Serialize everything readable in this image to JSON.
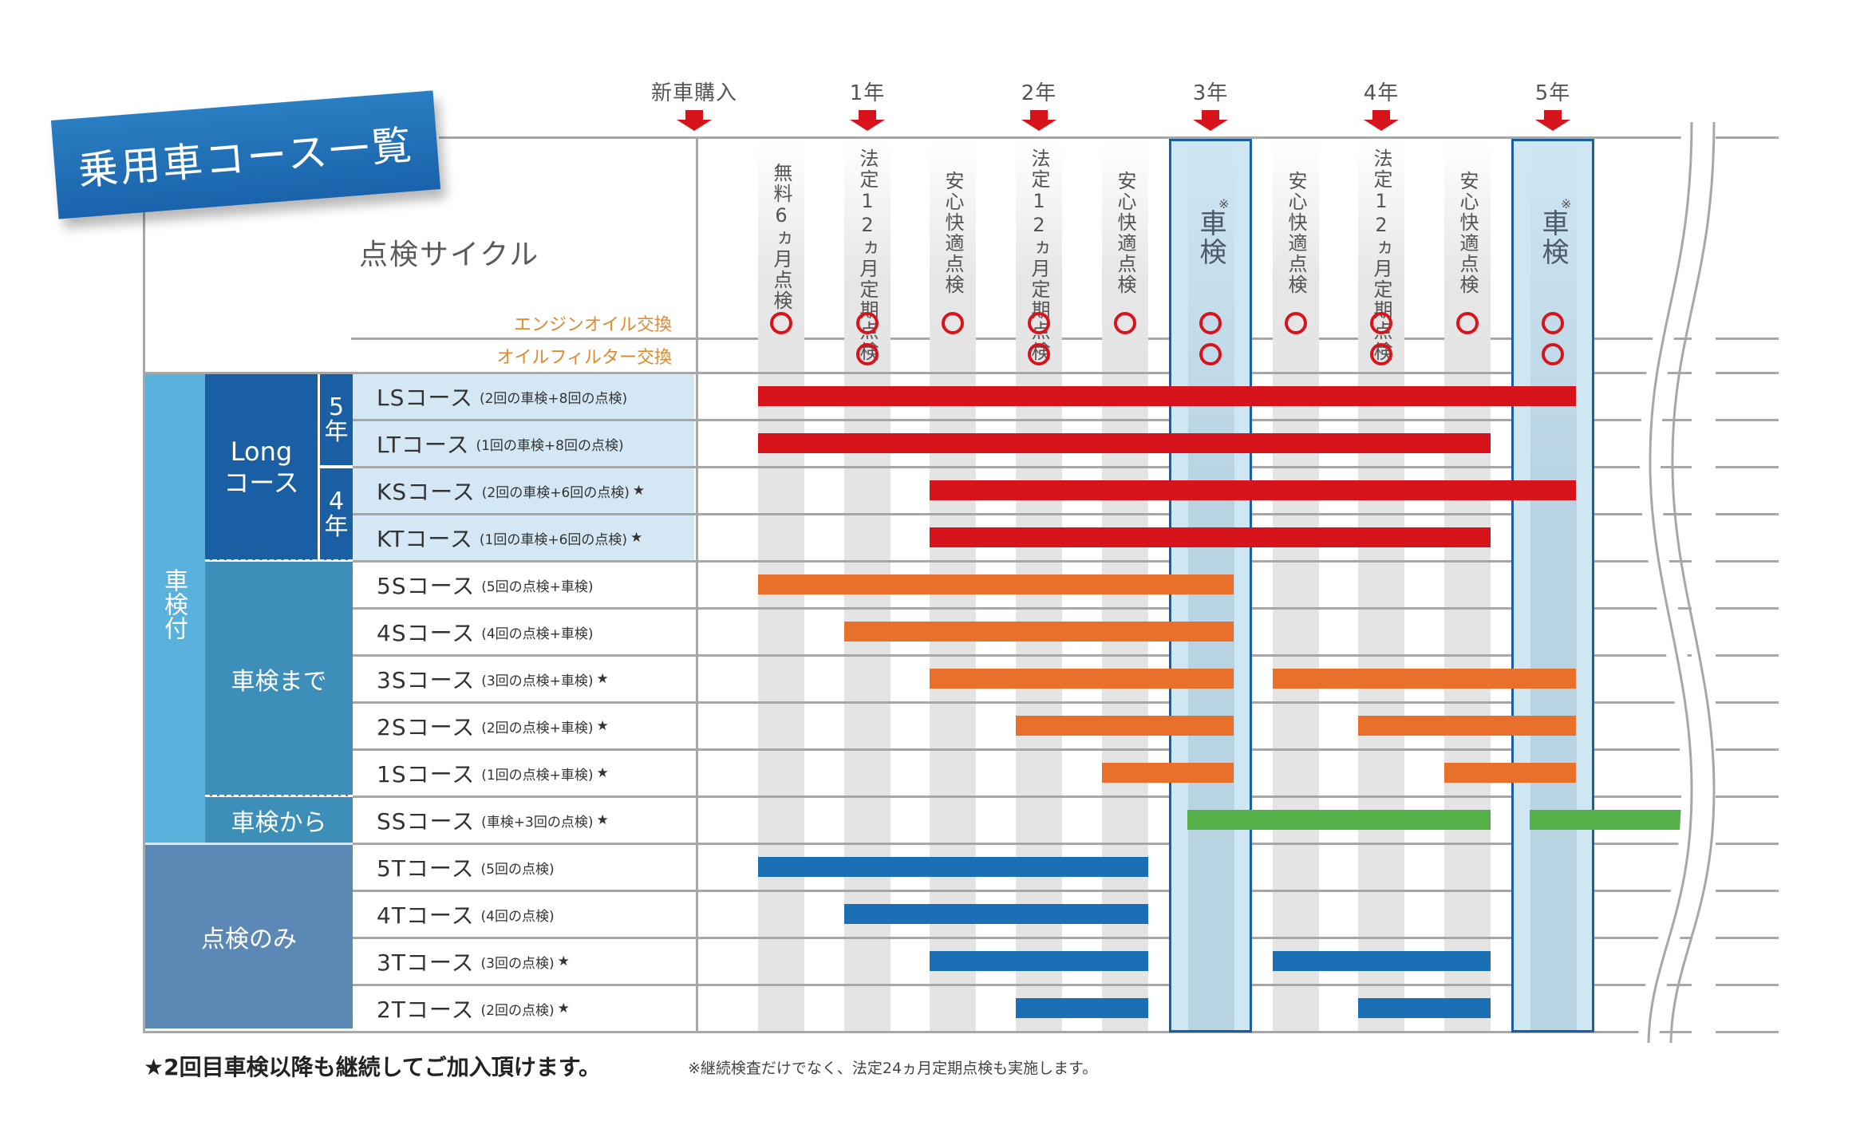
{
  "title": "乗用車コース一覧",
  "header": {
    "cycle_label": "点検サイクル",
    "oil_rows": [
      "エンジンオイル交換",
      "オイルフィルター交換"
    ],
    "years": [
      {
        "label": "新車購入"
      },
      {
        "label": "1年"
      },
      {
        "label": "2年"
      },
      {
        "label": "3年"
      },
      {
        "label": "4年"
      },
      {
        "label": "5年"
      }
    ],
    "columns": [
      {
        "label": "無料6ヵ月点検",
        "engine_oil": true,
        "oil_filter": false
      },
      {
        "label": "法定12ヵ月定期点検",
        "engine_oil": true,
        "oil_filter": true
      },
      {
        "label": "安心快適点検",
        "engine_oil": true,
        "oil_filter": false
      },
      {
        "label": "法定12ヵ月定期点検",
        "engine_oil": true,
        "oil_filter": true
      },
      {
        "label": "安心快適点検",
        "engine_oil": true,
        "oil_filter": false
      },
      {
        "label": "車検",
        "note_mark": "※",
        "engine_oil": true,
        "oil_filter": true
      },
      {
        "label": "安心快適点検",
        "engine_oil": true,
        "oil_filter": false
      },
      {
        "label": "法定12ヵ月定期点検",
        "engine_oil": true,
        "oil_filter": true
      },
      {
        "label": "安心快適点検",
        "engine_oil": true,
        "oil_filter": false
      },
      {
        "label": "車検",
        "note_mark": "※",
        "engine_oil": true,
        "oil_filter": true
      }
    ]
  },
  "groups": {
    "with_inspection": "車検付",
    "long": "Long\nコース",
    "long_5y": "5\n年",
    "long_4y": "4\n年",
    "until_inspection": "車検まで",
    "from_inspection": "車検から",
    "check_only": "点検のみ"
  },
  "courses": [
    {
      "code": "LSコース",
      "desc": "(2回の車検+8回の点検)",
      "star": false
    },
    {
      "code": "LTコース",
      "desc": "(1回の車検+8回の点検)",
      "star": false
    },
    {
      "code": "KSコース",
      "desc": "(2回の車検+6回の点検)",
      "star": true
    },
    {
      "code": "KTコース",
      "desc": "(1回の車検+6回の点検)",
      "star": true
    },
    {
      "code": "5Sコース",
      "desc": "(5回の点検+車検)",
      "star": false
    },
    {
      "code": "4Sコース",
      "desc": "(4回の点検+車検)",
      "star": false
    },
    {
      "code": "3Sコース",
      "desc": "(3回の点検+車検)",
      "star": true
    },
    {
      "code": "2Sコース",
      "desc": "(2回の点検+車検)",
      "star": true
    },
    {
      "code": "1Sコース",
      "desc": "(1回の点検+車検)",
      "star": true
    },
    {
      "code": "SSコース",
      "desc": "(車検+3回の点検)",
      "star": true
    },
    {
      "code": "5Tコース",
      "desc": "(5回の点検)",
      "star": false
    },
    {
      "code": "4Tコース",
      "desc": "(4回の点検)",
      "star": false
    },
    {
      "code": "3Tコース",
      "desc": "(3回の点検)",
      "star": true
    },
    {
      "code": "2Tコース",
      "desc": "(2回の点検)",
      "star": true
    }
  ],
  "star_glyph": "★",
  "colors": {
    "red": "#d7141c",
    "orange": "#e8702a",
    "green": "#56b04a",
    "blue": "#1a6fb5",
    "navy": "#1a5fa3",
    "oil_label": "#e0892e"
  },
  "chart_data": {
    "type": "gantt",
    "title": "乗用車コース一覧",
    "xlabel": "点検サイクル",
    "x_ticks": [
      "無料6ヵ月点検",
      "法定12ヵ月定期点検(1年)",
      "安心快適点検",
      "法定12ヵ月定期点検(2年)",
      "安心快適点検",
      "車検(3年)",
      "安心快適点検",
      "法定12ヵ月定期点検(4年)",
      "安心快適点検",
      "車検(5年)"
    ],
    "year_markers": [
      "新車購入",
      "1年",
      "2年",
      "3年",
      "4年",
      "5年"
    ],
    "series": [
      {
        "name": "LSコース",
        "color": "red",
        "segments": [
          [
            0,
            9
          ]
        ]
      },
      {
        "name": "LTコース",
        "color": "red",
        "segments": [
          [
            0,
            8
          ]
        ]
      },
      {
        "name": "KSコース",
        "color": "red",
        "segments": [
          [
            2,
            9
          ]
        ]
      },
      {
        "name": "KTコース",
        "color": "red",
        "segments": [
          [
            2,
            8
          ]
        ]
      },
      {
        "name": "5Sコース",
        "color": "orange",
        "segments": [
          [
            0,
            5
          ]
        ]
      },
      {
        "name": "4Sコース",
        "color": "orange",
        "segments": [
          [
            1,
            5
          ]
        ]
      },
      {
        "name": "3Sコース",
        "color": "orange",
        "segments": [
          [
            2,
            5
          ],
          [
            6,
            9
          ]
        ]
      },
      {
        "name": "2Sコース",
        "color": "orange",
        "segments": [
          [
            3,
            5
          ],
          [
            7,
            9
          ]
        ]
      },
      {
        "name": "1Sコース",
        "color": "orange",
        "segments": [
          [
            4,
            5
          ],
          [
            8,
            9
          ]
        ]
      },
      {
        "name": "SSコース",
        "color": "green",
        "segments": [
          [
            5,
            8
          ],
          [
            9,
            "continues"
          ]
        ]
      },
      {
        "name": "5Tコース",
        "color": "blue",
        "segments": [
          [
            0,
            4
          ]
        ]
      },
      {
        "name": "4Tコース",
        "color": "blue",
        "segments": [
          [
            1,
            4
          ]
        ]
      },
      {
        "name": "3Tコース",
        "color": "blue",
        "segments": [
          [
            2,
            4
          ],
          [
            6,
            8
          ]
        ]
      },
      {
        "name": "2Tコース",
        "color": "blue",
        "segments": [
          [
            3,
            4
          ],
          [
            7,
            8
          ]
        ]
      }
    ],
    "engine_oil_change": [
      true,
      true,
      true,
      true,
      true,
      true,
      true,
      true,
      true,
      true
    ],
    "oil_filter_change": [
      false,
      true,
      false,
      true,
      false,
      true,
      false,
      true,
      false,
      true
    ]
  },
  "footer": {
    "main": "★2回目車検以降も継続してご加入頂けます。",
    "note": "※継続検査だけでなく、法定24ヵ月定期点検も実施します。"
  }
}
